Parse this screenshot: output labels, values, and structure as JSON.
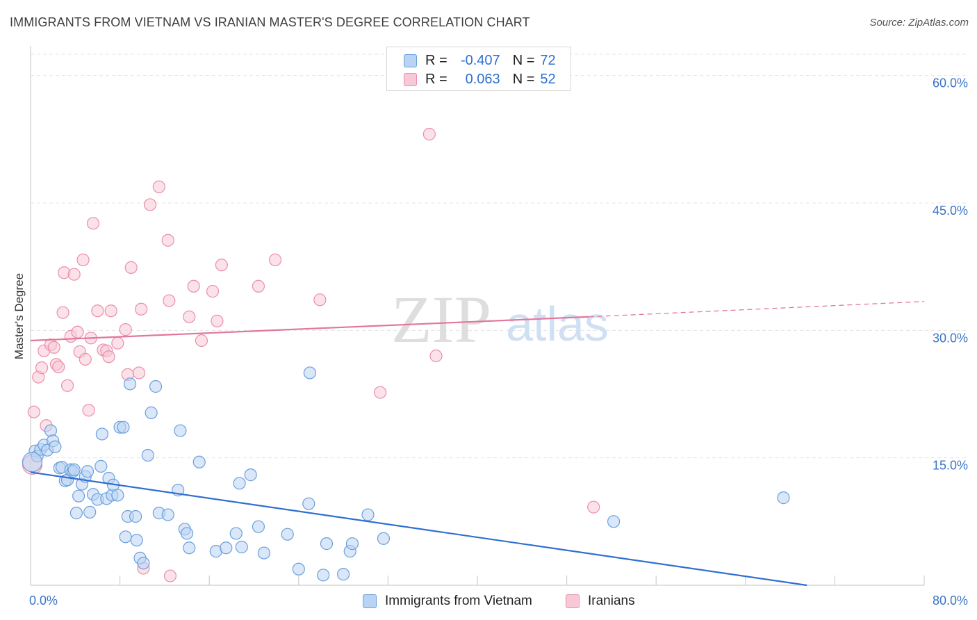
{
  "header": {
    "title": "IMMIGRANTS FROM VIETNAM VS IRANIAN MASTER'S DEGREE CORRELATION CHART",
    "source": "Source: ZipAtlas.com"
  },
  "watermark": {
    "zip": "ZIP",
    "atlas": "atlas"
  },
  "stats": {
    "rows": [
      {
        "r_label": "R =",
        "r_value": "-0.407",
        "n_label": "N =",
        "n_value": "72",
        "color": "#6b9fde"
      },
      {
        "r_label": "R =",
        "r_value": "0.063",
        "n_label": "N =",
        "n_value": "52",
        "color": "#ea8fac"
      }
    ]
  },
  "legend": {
    "items": [
      "Immigrants from Vietnam",
      "Iranians"
    ]
  },
  "colors": {
    "blue_fill": "#b9d3f3",
    "blue_stroke": "#6b9fde",
    "blue_line": "#2f6fd0",
    "pink_fill": "#f7c8d6",
    "pink_stroke": "#ea8fac",
    "pink_line": "#e2779c",
    "tick_text": "#3a74c9",
    "grid": "#e4e4e4"
  },
  "chart_data": {
    "type": "scatter",
    "title": "IMMIGRANTS FROM VIETNAM VS IRANIAN MASTER'S DEGREE CORRELATION CHART",
    "xlabel": "",
    "ylabel": "Master's Degree",
    "xlim": [
      0,
      80
    ],
    "ylim": [
      0,
      63
    ],
    "x_tick_labels": [
      "0.0%",
      "80.0%"
    ],
    "y_ticks": [
      15,
      30,
      45,
      60
    ],
    "y_tick_labels": [
      "15.0%",
      "30.0%",
      "45.0%",
      "60.0%"
    ],
    "grid": true,
    "legend_position": "bottom-center",
    "series": [
      {
        "name": "Immigrants from Vietnam",
        "r": -0.407,
        "n": 72,
        "trend": {
          "x0": 0,
          "y0": 13.3,
          "x1": 69.5,
          "y1": 0,
          "dashed_x1": 69.5
        },
        "points": [
          [
            0.4,
            15.8
          ],
          [
            0.6,
            15.2
          ],
          [
            0.9,
            16.0
          ],
          [
            1.2,
            16.5
          ],
          [
            1.5,
            15.9
          ],
          [
            1.8,
            18.2
          ],
          [
            2.0,
            17.0
          ],
          [
            2.2,
            16.3
          ],
          [
            2.6,
            13.8
          ],
          [
            2.8,
            13.9
          ],
          [
            3.1,
            12.3
          ],
          [
            3.3,
            12.4
          ],
          [
            3.6,
            13.6
          ],
          [
            3.8,
            13.4
          ],
          [
            3.9,
            13.6
          ],
          [
            4.1,
            8.5
          ],
          [
            4.3,
            10.5
          ],
          [
            4.6,
            11.9
          ],
          [
            4.9,
            12.8
          ],
          [
            5.1,
            13.4
          ],
          [
            5.3,
            8.6
          ],
          [
            5.6,
            10.7
          ],
          [
            6.0,
            10.1
          ],
          [
            6.3,
            14.0
          ],
          [
            6.4,
            17.8
          ],
          [
            6.8,
            10.2
          ],
          [
            7.0,
            12.6
          ],
          [
            7.3,
            10.6
          ],
          [
            7.4,
            11.8
          ],
          [
            7.8,
            10.6
          ],
          [
            8.0,
            18.6
          ],
          [
            8.3,
            18.6
          ],
          [
            8.5,
            5.7
          ],
          [
            8.7,
            8.1
          ],
          [
            8.9,
            23.7
          ],
          [
            9.4,
            8.1
          ],
          [
            9.5,
            5.3
          ],
          [
            9.8,
            3.2
          ],
          [
            10.1,
            2.6
          ],
          [
            10.5,
            15.3
          ],
          [
            10.8,
            20.3
          ],
          [
            11.2,
            23.4
          ],
          [
            11.5,
            8.5
          ],
          [
            12.3,
            8.3
          ],
          [
            13.2,
            11.2
          ],
          [
            13.4,
            18.2
          ],
          [
            13.8,
            6.6
          ],
          [
            14.0,
            6.1
          ],
          [
            14.2,
            4.4
          ],
          [
            15.1,
            14.5
          ],
          [
            16.6,
            4.0
          ],
          [
            17.5,
            4.4
          ],
          [
            18.4,
            6.1
          ],
          [
            18.7,
            12.0
          ],
          [
            18.9,
            4.5
          ],
          [
            19.7,
            13.0
          ],
          [
            20.4,
            6.9
          ],
          [
            20.9,
            3.8
          ],
          [
            23.0,
            6.0
          ],
          [
            24.0,
            1.9
          ],
          [
            24.9,
            9.6
          ],
          [
            25.0,
            25.0
          ],
          [
            26.2,
            1.2
          ],
          [
            26.5,
            4.9
          ],
          [
            28.0,
            1.3
          ],
          [
            28.6,
            4.0
          ],
          [
            28.8,
            4.9
          ],
          [
            30.2,
            8.3
          ],
          [
            31.6,
            5.5
          ],
          [
            52.2,
            7.5
          ],
          [
            67.4,
            10.3
          ],
          [
            0.15,
            14.5
          ]
        ]
      },
      {
        "name": "Iranians",
        "r": 0.063,
        "n": 52,
        "trend": {
          "x0": 0,
          "y0": 28.8,
          "x1": 50.0,
          "y1": 31.6,
          "dashed_x1": 80.0,
          "dashed_y1": 33.4
        },
        "points": [
          [
            0.3,
            20.4
          ],
          [
            0.7,
            24.5
          ],
          [
            1.0,
            25.6
          ],
          [
            1.2,
            27.6
          ],
          [
            1.4,
            18.8
          ],
          [
            1.8,
            28.3
          ],
          [
            2.1,
            28.0
          ],
          [
            2.3,
            26.0
          ],
          [
            2.5,
            25.7
          ],
          [
            2.9,
            32.1
          ],
          [
            3.0,
            36.8
          ],
          [
            3.3,
            23.5
          ],
          [
            3.6,
            29.3
          ],
          [
            3.9,
            36.6
          ],
          [
            4.2,
            29.8
          ],
          [
            4.4,
            27.5
          ],
          [
            4.7,
            38.3
          ],
          [
            4.9,
            26.6
          ],
          [
            5.2,
            20.6
          ],
          [
            5.4,
            29.1
          ],
          [
            5.6,
            42.6
          ],
          [
            6.0,
            32.3
          ],
          [
            6.5,
            27.7
          ],
          [
            6.8,
            27.6
          ],
          [
            7.0,
            26.9
          ],
          [
            7.2,
            32.3
          ],
          [
            7.8,
            28.5
          ],
          [
            8.5,
            30.1
          ],
          [
            8.7,
            24.8
          ],
          [
            9.0,
            37.4
          ],
          [
            9.7,
            25.0
          ],
          [
            9.9,
            32.5
          ],
          [
            10.1,
            2.0
          ],
          [
            10.7,
            44.8
          ],
          [
            11.5,
            46.9
          ],
          [
            12.3,
            40.6
          ],
          [
            12.4,
            33.5
          ],
          [
            12.5,
            1.1
          ],
          [
            14.2,
            31.6
          ],
          [
            14.6,
            35.2
          ],
          [
            15.3,
            28.8
          ],
          [
            16.3,
            34.6
          ],
          [
            16.7,
            31.1
          ],
          [
            17.1,
            37.7
          ],
          [
            20.4,
            35.2
          ],
          [
            21.9,
            38.3
          ],
          [
            25.9,
            33.6
          ],
          [
            31.3,
            22.7
          ],
          [
            35.7,
            53.1
          ],
          [
            36.3,
            27.0
          ],
          [
            50.4,
            9.2
          ],
          [
            0.15,
            14.2
          ]
        ]
      }
    ]
  }
}
